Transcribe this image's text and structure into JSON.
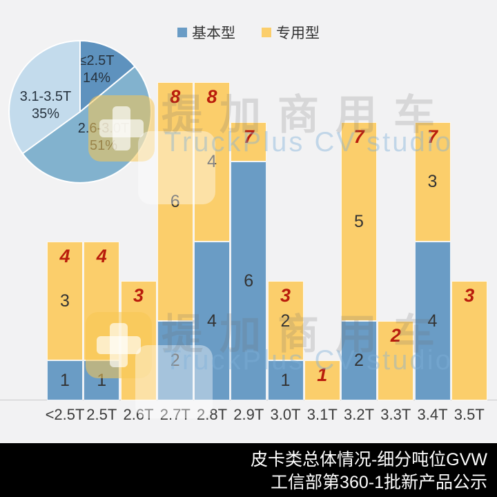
{
  "watermark": {
    "cn": "提加商用车",
    "en": "TruckPlus CV studio"
  },
  "footer": {
    "line1": "皮卡类总体情况-细分吨位GVW",
    "line2": "工信部第360-1批新产品公示"
  },
  "chart_data": [
    {
      "type": "pie",
      "slices": [
        {
          "label": "≤2.5T",
          "pct": 14,
          "color": "#5E92BE"
        },
        {
          "label": "2.6-3.0T",
          "pct": 51,
          "color": "#82B2CE"
        },
        {
          "label": "3.1-3.5T",
          "pct": 35,
          "color": "#C3DBEC"
        }
      ],
      "start_angle_deg": 0,
      "direction": "clockwise",
      "labels_inside": true
    },
    {
      "type": "bar",
      "stacked": true,
      "categories": [
        "<2.5T",
        "2.5T",
        "2.6T",
        "2.7T",
        "2.8T",
        "2.9T",
        "3.0T",
        "3.1T",
        "3.2T",
        "3.3T",
        "3.4T",
        "3.5T"
      ],
      "series": [
        {
          "name": "基本型",
          "color": "#6A9CC5",
          "values": [
            1,
            1,
            0,
            2,
            4,
            6,
            1,
            0,
            2,
            0,
            4,
            0
          ]
        },
        {
          "name": "专用型",
          "color": "#FBCE6B",
          "values": [
            3,
            3,
            3,
            6,
            4,
            1,
            2,
            1,
            5,
            2,
            3,
            3
          ]
        }
      ],
      "totals": [
        4,
        4,
        3,
        8,
        8,
        7,
        3,
        1,
        7,
        2,
        7,
        3
      ],
      "totals_color": "#B91C0C",
      "segment_labels": {
        "basic": [
          1,
          1,
          null,
          2,
          4,
          6,
          1,
          null,
          2,
          null,
          4,
          null
        ],
        "special": [
          3,
          null,
          null,
          6,
          4,
          null,
          2,
          null,
          5,
          null,
          3,
          null
        ]
      },
      "ylim": [
        0,
        8
      ],
      "grid": false,
      "legend_position": "top"
    }
  ]
}
